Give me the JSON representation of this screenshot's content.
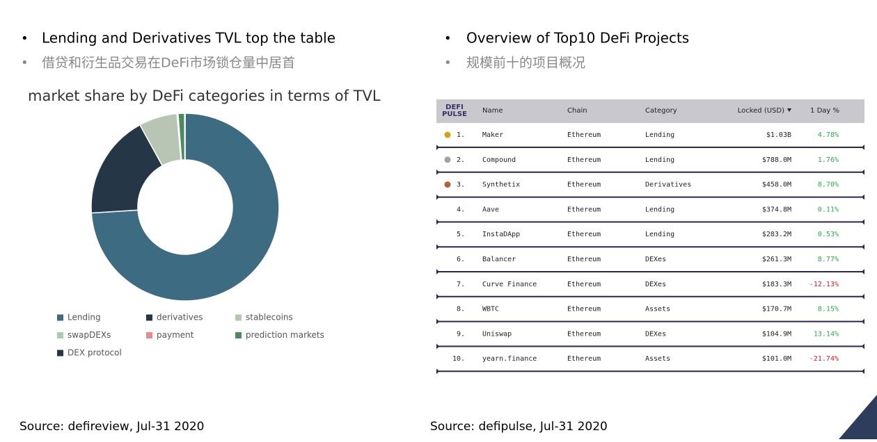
{
  "left": {
    "bullets": [
      "Lending and Derivatives TVL top the table",
      "借贷和衍生品交易在DeFi市场锁仓量中居首"
    ],
    "source": "Source: defireview, Jul-31 2020"
  },
  "chart_data": {
    "type": "pie",
    "title": "market share by DeFi categories in terms of TVL",
    "categories": [
      "Lending",
      "derivatives",
      "stablecoins",
      "swapDEXs",
      "payment",
      "prediction markets",
      "DEX protocol"
    ],
    "values": [
      74,
      18,
      6.6,
      0.1,
      0.1,
      1.1,
      0.1
    ],
    "colors": [
      "#3d6b82",
      "#253746",
      "#b8c4b4",
      "#a8cbb8",
      "#e88a8a",
      "#4a8a5e",
      "#253746"
    ],
    "donut": true,
    "legend": "bottom"
  },
  "right": {
    "bullets": [
      "Overview of Top10 DeFi Projects",
      "规模前十的项目概况"
    ],
    "source": "Source: defipulse, Jul-31 2020"
  },
  "table": {
    "logo": [
      "DEFI",
      "PULSE"
    ],
    "header": [
      "Name",
      "Chain",
      "Category",
      "Locked (USD)",
      "1 Day %"
    ],
    "rows": [
      [
        "1.",
        "Maker",
        "Ethereum",
        "Lending",
        "$1.03B",
        "4.78%"
      ],
      [
        "2.",
        "Compound",
        "Ethereum",
        "Lending",
        "$788.0M",
        "1.76%"
      ],
      [
        "3.",
        "Synthetix",
        "Ethereum",
        "Derivatives",
        "$458.0M",
        "8.70%"
      ],
      [
        "4.",
        "Aave",
        "Ethereum",
        "Lending",
        "$374.8M",
        "0.11%"
      ],
      [
        "5.",
        "InstaDApp",
        "Ethereum",
        "Lending",
        "$283.2M",
        "0.53%"
      ],
      [
        "6.",
        "Balancer",
        "Ethereum",
        "DEXes",
        "$261.3M",
        "8.77%"
      ],
      [
        "7.",
        "Curve Finance",
        "Ethereum",
        "DEXes",
        "$183.3M",
        "-12.13%"
      ],
      [
        "8.",
        "WBTC",
        "Ethereum",
        "Assets",
        "$170.7M",
        "8.15%"
      ],
      [
        "9.",
        "Uniswap",
        "Ethereum",
        "DEXes",
        "$104.9M",
        "13.14%"
      ],
      [
        "10.",
        "yearn.finance",
        "Ethereum",
        "Assets",
        "$101.0M",
        "-21.74%"
      ]
    ]
  }
}
